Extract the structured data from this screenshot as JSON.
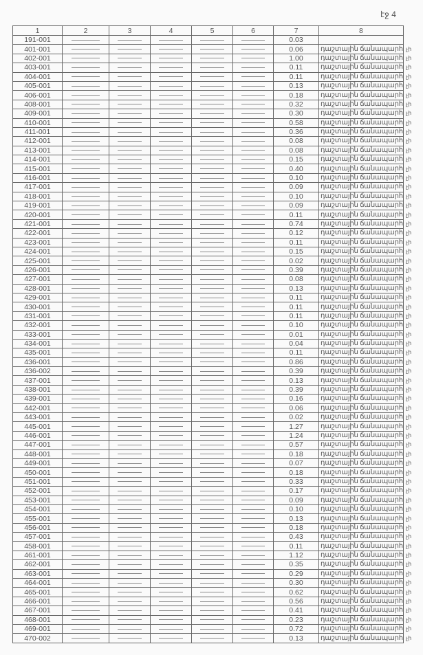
{
  "page_number": "էջ 4",
  "columns": [
    "1",
    "2",
    "3",
    "4",
    "5",
    "6",
    "7",
    "8"
  ],
  "land_use_label": "դաշտային ճանապարհ",
  "margin_mark": "չի",
  "rows": [
    {
      "id": "191-001",
      "area": "0.03",
      "use": ""
    },
    {
      "id": "401-001",
      "area": "0.06",
      "use": "դաշտային ճանապարհ"
    },
    {
      "id": "402-001",
      "area": "1.00",
      "use": "դաշտային ճանապարհ"
    },
    {
      "id": "403-001",
      "area": "0.11",
      "use": "դաշտային ճանապարհ"
    },
    {
      "id": "404-001",
      "area": "0.11",
      "use": "դաշտային ճանապարհ"
    },
    {
      "id": "405-001",
      "area": "0.13",
      "use": "դաշտային ճանապարհ"
    },
    {
      "id": "406-001",
      "area": "0.18",
      "use": "դաշտային ճանապարհ"
    },
    {
      "id": "408-001",
      "area": "0.32",
      "use": "դաշտային ճանապարհ"
    },
    {
      "id": "409-001",
      "area": "0.30",
      "use": "դաշտային ճանապարհ"
    },
    {
      "id": "410-001",
      "area": "0.58",
      "use": "դաշտային ճանապարհ"
    },
    {
      "id": "411-001",
      "area": "0.36",
      "use": "դաշտային ճանապարհ"
    },
    {
      "id": "412-001",
      "area": "0.08",
      "use": "դաշտային ճանապարհ"
    },
    {
      "id": "413-001",
      "area": "0.08",
      "use": "դաշտային ճանապարհ"
    },
    {
      "id": "414-001",
      "area": "0.15",
      "use": "դաշտային ճանապարհ"
    },
    {
      "id": "415-001",
      "area": "0.40",
      "use": "դաշտային ճանապարհ"
    },
    {
      "id": "416-001",
      "area": "0.10",
      "use": "դաշտային ճանապարհ"
    },
    {
      "id": "417-001",
      "area": "0.09",
      "use": "դաշտային ճանապարհ"
    },
    {
      "id": "418-001",
      "area": "0.10",
      "use": "դաշտային ճանապարհ"
    },
    {
      "id": "419-001",
      "area": "0.09",
      "use": "դաշտային ճանապարհ"
    },
    {
      "id": "420-001",
      "area": "0.11",
      "use": "դաշտային ճանապարհ"
    },
    {
      "id": "421-001",
      "area": "0.74",
      "use": "դաշտային ճանապարհ"
    },
    {
      "id": "422-001",
      "area": "0.12",
      "use": "դաշտային ճանապարհ"
    },
    {
      "id": "423-001",
      "area": "0.11",
      "use": "դաշտային ճանապարհ"
    },
    {
      "id": "424-001",
      "area": "0.15",
      "use": "դաշտային ճանապարհ"
    },
    {
      "id": "425-001",
      "area": "0.02",
      "use": "դաշտային ճանապարհ"
    },
    {
      "id": "426-001",
      "area": "0.39",
      "use": "դաշտային ճանապարհ"
    },
    {
      "id": "427-001",
      "area": "0.08",
      "use": "դաշտային ճանապարհ"
    },
    {
      "id": "428-001",
      "area": "0.13",
      "use": "դաշտային ճանապարհ"
    },
    {
      "id": "429-001",
      "area": "0.11",
      "use": "դաշտային ճանապարհ"
    },
    {
      "id": "430-001",
      "area": "0.11",
      "use": "դաշտային ճանապարհ"
    },
    {
      "id": "431-001",
      "area": "0.11",
      "use": "դաշտային ճանապարհ"
    },
    {
      "id": "432-001",
      "area": "0.10",
      "use": "դաշտային ճանապարհ"
    },
    {
      "id": "433-001",
      "area": "0.01",
      "use": "դաշտային ճանապարհ"
    },
    {
      "id": "434-001",
      "area": "0.04",
      "use": "դաշտային ճանապարհ"
    },
    {
      "id": "435-001",
      "area": "0.11",
      "use": "դաշտային ճանապարհ"
    },
    {
      "id": "436-001",
      "area": "0.86",
      "use": "դաշտային ճանապարհ"
    },
    {
      "id": "436-002",
      "area": "0.39",
      "use": "դաշտային ճանապարհ"
    },
    {
      "id": "437-001",
      "area": "0.13",
      "use": "դաշտային ճանապարհ"
    },
    {
      "id": "438-001",
      "area": "0.39",
      "use": "դաշտային ճանապարհ"
    },
    {
      "id": "439-001",
      "area": "0.16",
      "use": "դաշտային ճանապարհ"
    },
    {
      "id": "442-001",
      "area": "0.06",
      "use": "դաշտային ճանապարհ"
    },
    {
      "id": "443-001",
      "area": "0.02",
      "use": "դաշտային ճանապարհ"
    },
    {
      "id": "445-001",
      "area": "1.27",
      "use": "դաշտային ճանապարհ"
    },
    {
      "id": "446-001",
      "area": "1.24",
      "use": "դաշտային ճանապարհ"
    },
    {
      "id": "447-001",
      "area": "0.57",
      "use": "դաշտային ճանապարհ"
    },
    {
      "id": "448-001",
      "area": "0.18",
      "use": "դաշտային ճանապարհ"
    },
    {
      "id": "449-001",
      "area": "0.07",
      "use": "դաշտային ճանապարհ"
    },
    {
      "id": "450-001",
      "area": "0.18",
      "use": "դաշտային ճանապարհ"
    },
    {
      "id": "451-001",
      "area": "0.33",
      "use": "դաշտային ճանապարհ"
    },
    {
      "id": "452-001",
      "area": "0.17",
      "use": "դաշտային ճանապարհ"
    },
    {
      "id": "453-001",
      "area": "0.09",
      "use": "դաշտային ճանապարհ"
    },
    {
      "id": "454-001",
      "area": "0.10",
      "use": "դաշտային ճանապարհ"
    },
    {
      "id": "455-001",
      "area": "0.13",
      "use": "դաշտային ճանապարհ"
    },
    {
      "id": "456-001",
      "area": "0.18",
      "use": "դաշտային ճանապարհ"
    },
    {
      "id": "457-001",
      "area": "0.43",
      "use": "դաշտային ճանապարհ"
    },
    {
      "id": "458-001",
      "area": "0.11",
      "use": "դաշտային ճանապարհ"
    },
    {
      "id": "461-001",
      "area": "1.12",
      "use": "դաշտային ճանապարհ"
    },
    {
      "id": "462-001",
      "area": "0.35",
      "use": "դաշտային ճանապարհ"
    },
    {
      "id": "463-001",
      "area": "0.29",
      "use": "դաշտային ճանապարհ"
    },
    {
      "id": "464-001",
      "area": "0.30",
      "use": "դաշտային ճանապարհ"
    },
    {
      "id": "465-001",
      "area": "0.62",
      "use": "դաշտային ճանապարհ"
    },
    {
      "id": "466-001",
      "area": "0.56",
      "use": "դաշտային ճանապարհ"
    },
    {
      "id": "467-001",
      "area": "0.41",
      "use": "դաշտային ճանապարհ"
    },
    {
      "id": "468-001",
      "area": "0.23",
      "use": "դաշտային ճանապարհ"
    },
    {
      "id": "469-001",
      "area": "0.72",
      "use": "դաշտային ճանապարհ"
    },
    {
      "id": "470-002",
      "area": "0.13",
      "use": "դաշտային ճանապարհ"
    }
  ]
}
